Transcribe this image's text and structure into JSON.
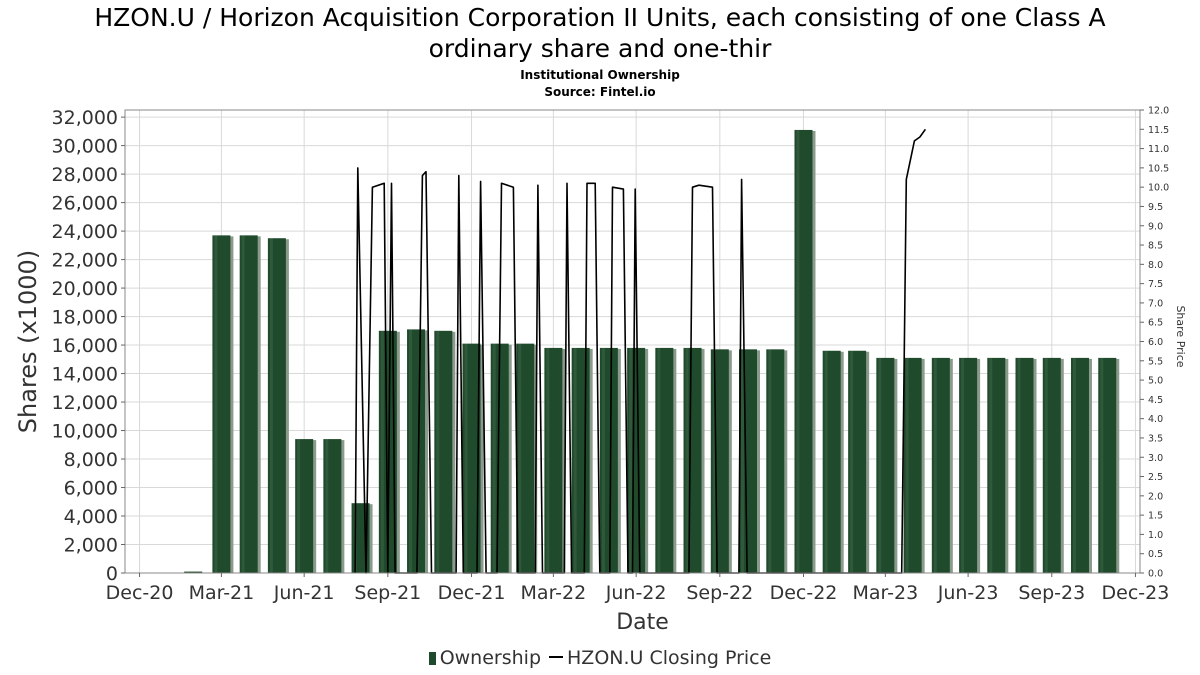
{
  "title_line1": "HZON.U / Horizon Acquisition Corporation II Units, each consisting of one Class A",
  "title_line2": "ordinary share and one-thir",
  "subtitle": "Institutional Ownership",
  "source": "Source: Fintel.io",
  "colors": {
    "bar": "#1f4a2b",
    "bar_shadow": "#8a9a8c",
    "line": "#000000",
    "grid": "#d9d9d9"
  },
  "chart_data": {
    "type": "bar",
    "grid": true,
    "legend_position": "bottom",
    "xlabel": "Date",
    "ylabel": "Shares (x1000)",
    "y2label": "Share Price",
    "ylim": [
      0,
      32500
    ],
    "y2lim": [
      0,
      12.0
    ],
    "x_range": [
      "2020-12-15",
      "2024-01-05"
    ],
    "x_ticks": [
      {
        "date": "2020-12-31",
        "label": "Dec-20"
      },
      {
        "date": "2021-03-31",
        "label": "Mar-21"
      },
      {
        "date": "2021-06-30",
        "label": "Jun-21"
      },
      {
        "date": "2021-09-30",
        "label": "Sep-21"
      },
      {
        "date": "2021-12-31",
        "label": "Dec-21"
      },
      {
        "date": "2022-03-31",
        "label": "Mar-22"
      },
      {
        "date": "2022-06-30",
        "label": "Jun-22"
      },
      {
        "date": "2022-09-30",
        "label": "Sep-22"
      },
      {
        "date": "2022-12-31",
        "label": "Dec-22"
      },
      {
        "date": "2023-03-31",
        "label": "Mar-23"
      },
      {
        "date": "2023-06-30",
        "label": "Jun-23"
      },
      {
        "date": "2023-09-30",
        "label": "Sep-23"
      },
      {
        "date": "2023-12-31",
        "label": "Dec-23"
      }
    ],
    "y_ticks": [
      {
        "value": 0,
        "label": "0"
      },
      {
        "value": 2000,
        "label": "2,000"
      },
      {
        "value": 4000,
        "label": "4,000"
      },
      {
        "value": 6000,
        "label": "6,000"
      },
      {
        "value": 8000,
        "label": "8,000"
      },
      {
        "value": 10000,
        "label": "10,000"
      },
      {
        "value": 12000,
        "label": "12,000"
      },
      {
        "value": 14000,
        "label": "14,000"
      },
      {
        "value": 16000,
        "label": "16,000"
      },
      {
        "value": 18000,
        "label": "18,000"
      },
      {
        "value": 20000,
        "label": "20,000"
      },
      {
        "value": 22000,
        "label": "22,000"
      },
      {
        "value": 24000,
        "label": "24,000"
      },
      {
        "value": 26000,
        "label": "26,000"
      },
      {
        "value": 28000,
        "label": "28,000"
      },
      {
        "value": 30000,
        "label": "30,000"
      },
      {
        "value": 32000,
        "label": "32,000"
      }
    ],
    "y2_ticks": [
      {
        "value": 0,
        "label": "0.0"
      },
      {
        "value": 0.5,
        "label": "0.5"
      },
      {
        "value": 1,
        "label": "1.0"
      },
      {
        "value": 1.5,
        "label": "1.5"
      },
      {
        "value": 2,
        "label": "2.0"
      },
      {
        "value": 2.5,
        "label": "2.5"
      },
      {
        "value": 3,
        "label": "3.0"
      },
      {
        "value": 3.5,
        "label": "3.5"
      },
      {
        "value": 4,
        "label": "4.0"
      },
      {
        "value": 4.5,
        "label": "4.5"
      },
      {
        "value": 5,
        "label": "5.0"
      },
      {
        "value": 5.5,
        "label": "5.5"
      },
      {
        "value": 6,
        "label": "6.0"
      },
      {
        "value": 6.5,
        "label": "6.5"
      },
      {
        "value": 7,
        "label": "7.0"
      },
      {
        "value": 7.5,
        "label": "7.5"
      },
      {
        "value": 8,
        "label": "8.0"
      },
      {
        "value": 8.5,
        "label": "8.5"
      },
      {
        "value": 9,
        "label": "9.0"
      },
      {
        "value": 9.5,
        "label": "9.5"
      },
      {
        "value": 10,
        "label": "10.0"
      },
      {
        "value": 10.5,
        "label": "10.5"
      },
      {
        "value": 11,
        "label": "11.0"
      },
      {
        "value": 11.5,
        "label": "11.5"
      },
      {
        "value": 12,
        "label": "12.0"
      }
    ],
    "series": [
      {
        "name": "Ownership",
        "type": "bar",
        "axis": "left",
        "points": [
          {
            "x": "2021-02-28",
            "y": 100
          },
          {
            "x": "2021-03-31",
            "y": 23700
          },
          {
            "x": "2021-04-30",
            "y": 23700
          },
          {
            "x": "2021-05-31",
            "y": 23500
          },
          {
            "x": "2021-06-30",
            "y": 9400
          },
          {
            "x": "2021-07-31",
            "y": 9400
          },
          {
            "x": "2021-08-31",
            "y": 4900
          },
          {
            "x": "2021-09-30",
            "y": 17000
          },
          {
            "x": "2021-10-31",
            "y": 17100
          },
          {
            "x": "2021-11-30",
            "y": 17000
          },
          {
            "x": "2021-12-31",
            "y": 16100
          },
          {
            "x": "2022-01-31",
            "y": 16100
          },
          {
            "x": "2022-02-28",
            "y": 16100
          },
          {
            "x": "2022-03-31",
            "y": 15800
          },
          {
            "x": "2022-04-30",
            "y": 15800
          },
          {
            "x": "2022-05-31",
            "y": 15800
          },
          {
            "x": "2022-06-30",
            "y": 15800
          },
          {
            "x": "2022-07-31",
            "y": 15800
          },
          {
            "x": "2022-08-31",
            "y": 15800
          },
          {
            "x": "2022-09-30",
            "y": 15700
          },
          {
            "x": "2022-10-31",
            "y": 15700
          },
          {
            "x": "2022-11-30",
            "y": 15700
          },
          {
            "x": "2022-12-31",
            "y": 31100
          },
          {
            "x": "2023-01-31",
            "y": 15600
          },
          {
            "x": "2023-02-28",
            "y": 15600
          },
          {
            "x": "2023-03-31",
            "y": 15100
          },
          {
            "x": "2023-04-30",
            "y": 15100
          },
          {
            "x": "2023-05-31",
            "y": 15100
          },
          {
            "x": "2023-06-30",
            "y": 15100
          },
          {
            "x": "2023-07-31",
            "y": 15100
          },
          {
            "x": "2023-08-31",
            "y": 15100
          },
          {
            "x": "2023-09-30",
            "y": 15100
          },
          {
            "x": "2023-10-31",
            "y": 15100
          },
          {
            "x": "2023-11-30",
            "y": 15100
          }
        ]
      },
      {
        "name": "HZON.U Closing Price",
        "type": "line",
        "axis": "right",
        "points": [
          {
            "x": "2021-08-25",
            "y": 0.0
          },
          {
            "x": "2021-08-28",
            "y": 10.5
          },
          {
            "x": "2021-09-06",
            "y": 0.0
          },
          {
            "x": "2021-09-13",
            "y": 10.0
          },
          {
            "x": "2021-09-26",
            "y": 10.1
          },
          {
            "x": "2021-09-30",
            "y": 0.0
          },
          {
            "x": "2021-10-04",
            "y": 10.1
          },
          {
            "x": "2021-10-08",
            "y": 0.0
          },
          {
            "x": "2021-11-01",
            "y": 0.0
          },
          {
            "x": "2021-11-07",
            "y": 10.3
          },
          {
            "x": "2021-11-11",
            "y": 10.4
          },
          {
            "x": "2021-11-17",
            "y": 0.0
          },
          {
            "x": "2021-12-14",
            "y": 0.0
          },
          {
            "x": "2021-12-17",
            "y": 10.3
          },
          {
            "x": "2021-12-22",
            "y": 0.0
          },
          {
            "x": "2022-01-06",
            "y": 0.0
          },
          {
            "x": "2022-01-10",
            "y": 10.15
          },
          {
            "x": "2022-01-16",
            "y": 0.0
          },
          {
            "x": "2022-01-28",
            "y": 0.0
          },
          {
            "x": "2022-02-02",
            "y": 10.1
          },
          {
            "x": "2022-02-15",
            "y": 10.0
          },
          {
            "x": "2022-02-20",
            "y": 0.0
          },
          {
            "x": "2022-03-11",
            "y": 0.0
          },
          {
            "x": "2022-03-14",
            "y": 10.05
          },
          {
            "x": "2022-03-19",
            "y": 0.0
          },
          {
            "x": "2022-04-12",
            "y": 0.0
          },
          {
            "x": "2022-04-15",
            "y": 10.1
          },
          {
            "x": "2022-04-20",
            "y": 0.0
          },
          {
            "x": "2022-05-04",
            "y": 0.0
          },
          {
            "x": "2022-05-07",
            "y": 10.1
          },
          {
            "x": "2022-05-16",
            "y": 10.1
          },
          {
            "x": "2022-05-21",
            "y": 0.0
          },
          {
            "x": "2022-06-01",
            "y": 0.0
          },
          {
            "x": "2022-06-04",
            "y": 10.0
          },
          {
            "x": "2022-06-16",
            "y": 9.95
          },
          {
            "x": "2022-06-21",
            "y": 0.0
          },
          {
            "x": "2022-06-26",
            "y": 0.0
          },
          {
            "x": "2022-06-29",
            "y": 9.95
          },
          {
            "x": "2022-07-04",
            "y": 0.0
          },
          {
            "x": "2022-08-27",
            "y": 0.0
          },
          {
            "x": "2022-08-31",
            "y": 10.0
          },
          {
            "x": "2022-09-07",
            "y": 10.05
          },
          {
            "x": "2022-09-22",
            "y": 10.0
          },
          {
            "x": "2022-09-27",
            "y": 0.0
          },
          {
            "x": "2022-10-21",
            "y": 0.0
          },
          {
            "x": "2022-10-24",
            "y": 10.2
          },
          {
            "x": "2022-10-30",
            "y": 0.0
          },
          {
            "x": "2023-04-18",
            "y": 0.0
          },
          {
            "x": "2023-04-23",
            "y": 10.2
          },
          {
            "x": "2023-05-02",
            "y": 11.2
          },
          {
            "x": "2023-05-08",
            "y": 11.3
          },
          {
            "x": "2023-05-14",
            "y": 11.5
          }
        ]
      }
    ]
  },
  "legend": {
    "bar_label": "Ownership",
    "line_label": "HZON.U Closing Price"
  }
}
